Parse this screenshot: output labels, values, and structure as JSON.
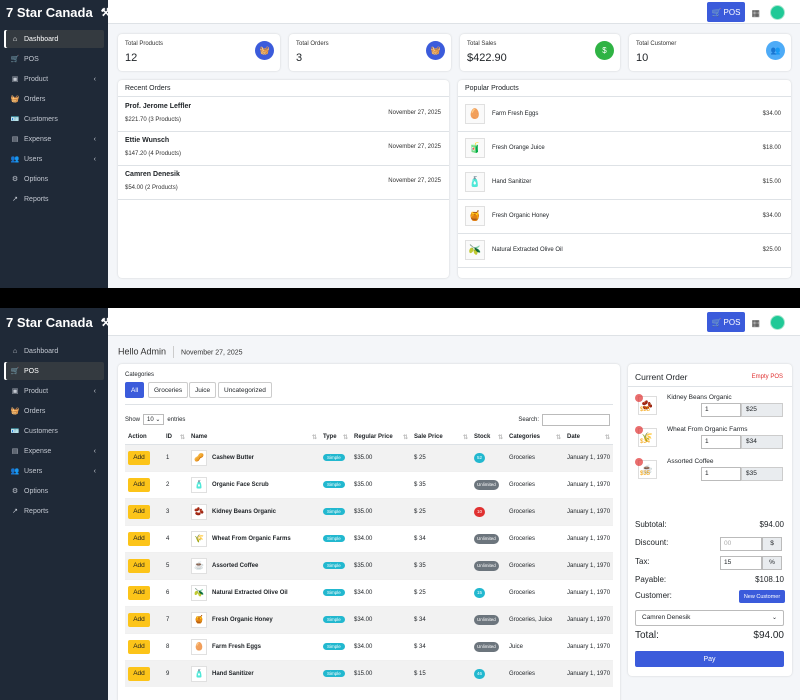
{
  "brand": "7 Star Canada",
  "pos_label": "POS",
  "sidebar": [
    {
      "label": "Dashboard",
      "icon": "home-icon",
      "chev": ""
    },
    {
      "label": "POS",
      "icon": "cart-icon",
      "chev": ""
    },
    {
      "label": "Product",
      "icon": "box-icon",
      "chev": "‹"
    },
    {
      "label": "Orders",
      "icon": "basket-icon",
      "chev": ""
    },
    {
      "label": "Customers",
      "icon": "id-card-icon",
      "chev": ""
    },
    {
      "label": "Expense",
      "icon": "wallet-icon",
      "chev": "‹"
    },
    {
      "label": "Users",
      "icon": "users-icon",
      "chev": "‹"
    },
    {
      "label": "Options",
      "icon": "gear-icon",
      "chev": ""
    },
    {
      "label": "Reports",
      "icon": "chart-icon",
      "chev": ""
    }
  ],
  "dashboard": {
    "stats": [
      {
        "label": "Total Products",
        "value": "12",
        "color": "#3b5bdb",
        "glyph": "🧺"
      },
      {
        "label": "Total Orders",
        "value": "3",
        "color": "#3b5bdb",
        "glyph": "🧺"
      },
      {
        "label": "Total Sales",
        "value": "$422.90",
        "color": "#2fb344",
        "glyph": "$"
      },
      {
        "label": "Total Customer",
        "value": "10",
        "color": "#4dabf7",
        "glyph": "👥"
      }
    ],
    "recent_title": "Recent Orders",
    "recent_orders": [
      {
        "name": "Prof. Jerome Leffler",
        "amount": "$221.70",
        "products": "(3 Products)",
        "date": "November 27, 2025"
      },
      {
        "name": "Ettie Wunsch",
        "amount": "$147.20",
        "products": "(4 Products)",
        "date": "November 27, 2025"
      },
      {
        "name": "Camren Denesik",
        "amount": "$54.00",
        "products": "(2 Products)",
        "date": "November 27, 2025"
      }
    ],
    "popular_title": "Popular Products",
    "popular_products": [
      {
        "name": "Farm Fresh Eggs",
        "price": "$34.00",
        "glyph": "🥚"
      },
      {
        "name": "Fresh Orange Juice",
        "price": "$18.00",
        "glyph": "🧃"
      },
      {
        "name": "Hand Sanitizer",
        "price": "$15.00",
        "glyph": "🧴"
      },
      {
        "name": "Fresh Organic Honey",
        "price": "$34.00",
        "glyph": "🍯"
      },
      {
        "name": "Natural Extracted Olive Oil",
        "price": "$25.00",
        "glyph": "🫒"
      }
    ]
  },
  "pos": {
    "hello": "Hello Admin",
    "date": "November 27, 2025",
    "categories_label": "Categories",
    "categories": [
      "All",
      "Groceries",
      "Juice",
      "Uncategorized"
    ],
    "show_label": "Show",
    "entries_value": "10",
    "entries_label": "entries",
    "search_label": "Search:",
    "columns": [
      "Action",
      "ID",
      "Name",
      "Type",
      "Regular Price",
      "Sale Price",
      "Stock",
      "Categories",
      "Date"
    ],
    "add_label": "Add",
    "rows": [
      {
        "id": "1",
        "name": "Cashew Butter",
        "glyph": "🥜",
        "type": "Simple",
        "regular": "$35.00",
        "sale": "$ 25",
        "stock": "52",
        "stock_color": "#22b8cf",
        "cats": "Groceries",
        "date": "January 1, 1970"
      },
      {
        "id": "2",
        "name": "Organic Face Scrub",
        "glyph": "🧴",
        "type": "Simple",
        "regular": "$35.00",
        "sale": "$ 35",
        "stock": "Unlimited",
        "stock_color": "#6c757d",
        "cats": "Groceries",
        "date": "January 1, 1970"
      },
      {
        "id": "3",
        "name": "Kidney Beans Organic",
        "glyph": "🫘",
        "type": "Simple",
        "regular": "$35.00",
        "sale": "$ 25",
        "stock": "10",
        "stock_color": "#e03131",
        "cats": "Groceries",
        "date": "January 1, 1970"
      },
      {
        "id": "4",
        "name": "Wheat From Organic Farms",
        "glyph": "🌾",
        "type": "Simple",
        "regular": "$34.00",
        "sale": "$ 34",
        "stock": "Unlimited",
        "stock_color": "#6c757d",
        "cats": "Groceries",
        "date": "January 1, 1970"
      },
      {
        "id": "5",
        "name": "Assorted Coffee",
        "glyph": "☕",
        "type": "Simple",
        "regular": "$35.00",
        "sale": "$ 35",
        "stock": "Unlimited",
        "stock_color": "#6c757d",
        "cats": "Groceries",
        "date": "January 1, 1970"
      },
      {
        "id": "6",
        "name": "Natural Extracted Olive Oil",
        "glyph": "🫒",
        "type": "Simple",
        "regular": "$34.00",
        "sale": "$ 25",
        "stock": "15",
        "stock_color": "#22b8cf",
        "cats": "Groceries",
        "date": "January 1, 1970"
      },
      {
        "id": "7",
        "name": "Fresh Organic Honey",
        "glyph": "🍯",
        "type": "Simple",
        "regular": "$34.00",
        "sale": "$ 34",
        "stock": "Unlimited",
        "stock_color": "#6c757d",
        "cats": "Groceries, Juice",
        "date": "January 1, 1970"
      },
      {
        "id": "8",
        "name": "Farm Fresh Eggs",
        "glyph": "🥚",
        "type": "Simple",
        "regular": "$34.00",
        "sale": "$ 34",
        "stock": "Unlimited",
        "stock_color": "#6c757d",
        "cats": "Juice",
        "date": "January 1, 1970"
      },
      {
        "id": "9",
        "name": "Hand Sanitizer",
        "glyph": "🧴",
        "type": "Simple",
        "regular": "$15.00",
        "sale": "$ 15",
        "stock": "46",
        "stock_color": "#22b8cf",
        "cats": "Groceries",
        "date": "January 1, 1970"
      }
    ],
    "order": {
      "title": "Current Order",
      "empty_label": "Empty POS",
      "items": [
        {
          "name": "Kidney Beans Organic",
          "price": "$25",
          "qty": "1",
          "subtotal": "$25",
          "glyph": "🫘"
        },
        {
          "name": "Wheat From Organic Farms",
          "price": "$34",
          "qty": "1",
          "subtotal": "$34",
          "glyph": "🌾"
        },
        {
          "name": "Assorted Coffee",
          "price": "$35",
          "qty": "1",
          "subtotal": "$35",
          "glyph": "☕"
        }
      ],
      "subtotal_label": "Subtotal:",
      "subtotal": "$94.00",
      "discount_label": "Discount:",
      "discount_placeholder": "00",
      "discount_unit": "$",
      "tax_label": "Tax:",
      "tax_value": "15",
      "tax_unit": "%",
      "payable_label": "Payable:",
      "payable": "$108.10",
      "customer_label": "Customer:",
      "new_customer": "New Customer",
      "customer_selected": "Camren Denesik",
      "total_label": "Total:",
      "total": "$94.00",
      "pay_label": "Pay"
    }
  }
}
